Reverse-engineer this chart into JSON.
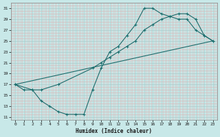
{
  "xlabel": "Humidex (Indice chaleur)",
  "bg_color": "#c8e8e8",
  "line_color": "#1a6b6b",
  "grid_color": "#b0d8d8",
  "xlim": [
    -0.5,
    23.5
  ],
  "ylim": [
    10.5,
    32
  ],
  "xticks": [
    0,
    1,
    2,
    3,
    4,
    5,
    6,
    7,
    8,
    9,
    10,
    11,
    12,
    13,
    14,
    15,
    16,
    17,
    18,
    19,
    20,
    21,
    22,
    23
  ],
  "yticks": [
    11,
    13,
    15,
    17,
    19,
    21,
    23,
    25,
    27,
    29,
    31
  ],
  "line1_x": [
    0,
    1,
    2,
    3,
    4,
    5,
    6,
    7,
    8,
    9,
    10,
    11,
    12,
    13,
    14,
    15,
    16,
    17,
    18,
    19,
    20,
    21,
    22,
    23
  ],
  "line1_y": [
    17,
    16,
    16,
    14,
    13,
    12,
    11.5,
    11.5,
    11.5,
    16,
    20,
    23,
    24,
    26,
    28,
    31,
    31,
    30,
    29.5,
    29,
    29,
    27,
    26,
    25
  ],
  "line2_x": [
    0,
    2,
    3,
    5,
    9,
    10,
    11,
    12,
    13,
    14,
    15,
    16,
    17,
    18,
    19,
    20,
    21,
    22,
    23
  ],
  "line2_y": [
    17,
    16,
    16,
    17,
    20,
    21,
    22,
    23,
    24,
    25,
    27,
    28,
    29,
    29.5,
    30,
    30,
    29,
    26,
    25
  ],
  "line3_x": [
    0,
    23
  ],
  "line3_y": [
    17,
    25
  ]
}
